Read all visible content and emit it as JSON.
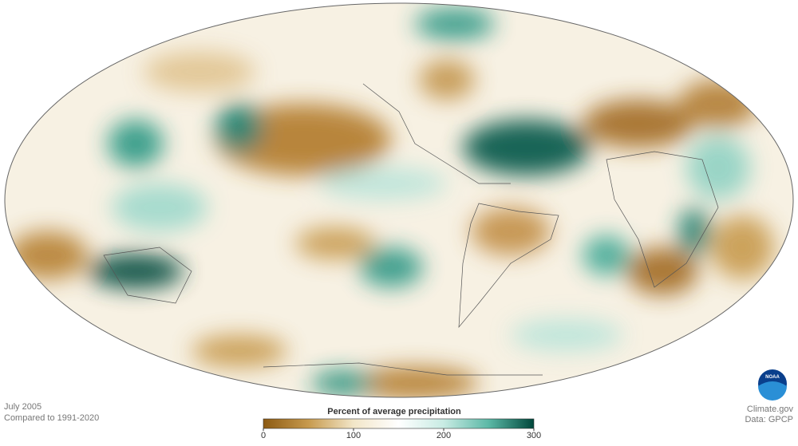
{
  "date": "July 2005",
  "baseline": "Compared to 1991-2020",
  "legend": {
    "title": "Percent of average precipitation",
    "range": [
      0,
      300
    ],
    "ticks": [
      0,
      100,
      200,
      300
    ],
    "colors": [
      "#8c5a12",
      "#c79a4e",
      "#f2e6c8",
      "#ffffff",
      "#c8ebe3",
      "#5bb8a6",
      "#00473b"
    ]
  },
  "logo": "NOAA",
  "credit": "Climate.gov",
  "source": "Data: GPCP"
}
